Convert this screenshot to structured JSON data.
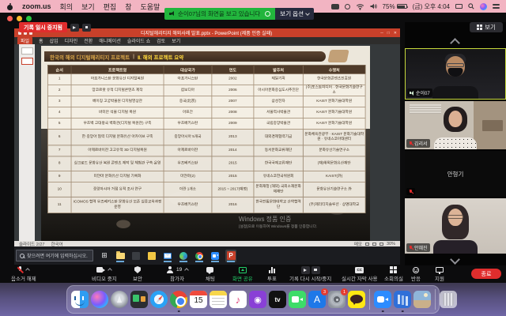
{
  "menu_bar": {
    "app_menus": [
      "zoom.us",
      "회의",
      "보기",
      "편집",
      "창",
      "도움말"
    ],
    "battery": "75%",
    "time": "(금) 오후 4:04"
  },
  "share_banner": {
    "message": "순이07님의 화면을 보고 있습니다",
    "view_options_label": "보기 옵션"
  },
  "recording_indicator": {
    "label": "기록 일시 중지됨"
  },
  "view_button_label": "보기",
  "shared_screen": {
    "powerpoint": {
      "window_title": "디지털헤리티지 해외사례 발표.pptx - PowerPoint (제품 인증 실패)",
      "ribbon_tabs": [
        "파일",
        "홈",
        "삽입",
        "디자인",
        "전환",
        "애니메이션",
        "슬라이드 쇼",
        "검토",
        "보기"
      ],
      "slide": {
        "header_title": "한국의 해외 디지털헤리티지 프로젝트",
        "header_divider": "|",
        "header_section": "Ⅱ. 해외 프로젝트 요약",
        "table": {
          "headers": [
            "순서",
            "프로젝트명",
            "대상국가",
            "연도",
            "발주처",
            "수행처"
          ],
          "rows": [
            [
              "1",
              "아프가니스탄 문화유산 디지털복원",
              "아프가니스탄",
              "2002",
              "제일기획",
              "한국문화콘텐츠진흥원"
            ],
            [
              "2",
              "앙코르왓 유적 디지털콘텐츠 제작",
              "캄보디아",
              "2006",
              "아시아문화중심도시추진단",
              "(주)포스트미디어 · 한국문화기술연구소"
            ],
            [
              "3",
              "베이징 고궁박물원 디지털영상관",
              "중국(北京)",
              "2007",
              "삼성전자",
              "KAIST 문화기술대학원"
            ],
            [
              "4",
              "바미안 석불 디지털 복원",
              "아프간",
              "2008",
              "서울역사박물관",
              "KAIST 문화기술대학원"
            ],
            [
              "5",
              "우즈벡 고대왕국 벽화관(디지털 복원관) 구축",
              "우즈베키스탄",
              "2009",
              "국립중앙박물관",
              "KAIST 문화기술대학원"
            ],
            [
              "6",
              "한·중앙아 협력 디지털 문화유산 아카이브 구축",
              "중앙아시아 5개국",
              "2013",
              "대외경제협력기금",
              "문화체육관광부 · KAIST 문화기술대학원 · 유네스코아태센터"
            ],
            [
              "7",
              "아제르바이잔 고고유적 3D 디지털복원",
              "아제르바이잔",
              "2014",
              "동서문화교류재단",
              "문화유산기술연구소"
            ],
            [
              "8",
              "실크로드 문화유산 복원 콘텐츠 제작 및 체험관 구축·운영",
              "우즈베키스탄",
              "2015",
              "한국국제교류재단",
              "(재)해외문화유산재단"
            ],
            [
              "9",
              "미얀마 문화유산 디지털 기록화",
              "미얀마(2)",
              "2015",
              "유네스코한국위원회",
              "KAIST(外)"
            ],
            [
              "10",
              "중앙아시아 거점 유적 조사 연구",
              "이란 1개소",
              "2015 ~ 2017(예정)",
              "문화재청 (해외) 국외소재문화재재단",
              "문화유산기술연구소 外"
            ],
            [
              "11",
              "ICOMOS 협력 우즈베키스탄 문화유산 보존 실증교육과정 운영",
              "우즈베키스탄",
              "2016",
              "한국전통문화대학교 산학협력단",
              "(주)헤리티지솔루션 · 상명대학교"
            ]
          ]
        },
        "watermark_line1": "Windows 정품 인증",
        "watermark_line2": "[설정]으로 이동하여 Windows를 정품 인증합니다."
      },
      "status_bar": {
        "slide_position": "슬라이드 2/27",
        "language": "한국어",
        "notes": "메모",
        "zoom_level": "30%"
      }
    },
    "taskbar": {
      "search_placeholder": "찾으려면 여기에 입력하십시오.",
      "icons": [
        "작업 보기",
        "파일 탐색기",
        "사진",
        "한컴오피스",
        "메일",
        "Microsoft Edge",
        "Chrome",
        "Zoom",
        "PowerPoint"
      ]
    }
  },
  "meeting_toolbar": {
    "mute": "음소거 해제",
    "video": "비디오 중지",
    "security": "보안",
    "participants": "참가자",
    "participants_count": "19",
    "chat": "채팅",
    "share": "화면 공유",
    "poll": "투표",
    "record": "기록 다시 시작/중지",
    "live_caption": "실시간 자막 사용",
    "breakout": "소회의실",
    "reactions": "반응",
    "support": "지원",
    "end": "종료"
  },
  "participants_panel": {
    "participants": [
      {
        "name": "순이07",
        "video": "on",
        "speaking": true,
        "muted": false
      },
      {
        "name": "김리서",
        "video": "on",
        "speaking": false,
        "muted": true
      },
      {
        "name": "안형기",
        "video": "off",
        "speaking": false,
        "muted": true
      },
      {
        "name": "안혜진",
        "video": "on",
        "speaking": false,
        "muted": true
      }
    ]
  },
  "dock": {
    "items": [
      "Finder",
      "Siri",
      "Launchpad",
      "디스플레이",
      "Safari",
      "Chrome",
      "캘린더",
      "메모",
      "음악",
      "팟캐스트",
      "Apple TV",
      "FaceTime",
      "App Store",
      "시스템 환경설정",
      "카카오톡",
      "zoom.us",
      "문서함",
      "이미지",
      "휴지통"
    ],
    "calendar_day": "15",
    "app_store_badge": "3",
    "settings_badge": "1"
  },
  "colors": {
    "menu_bar_pink": "#f2b4c2",
    "banner_green": "#22b53d",
    "powerpoint_red": "#c8402a",
    "record_red": "#e02d2d",
    "end_button_red": "#e02d2d",
    "active_speaker_border": "#c6d83b",
    "share_green": "#23d06a",
    "dock_purple": "rgba(150,142,188,0.55)"
  }
}
